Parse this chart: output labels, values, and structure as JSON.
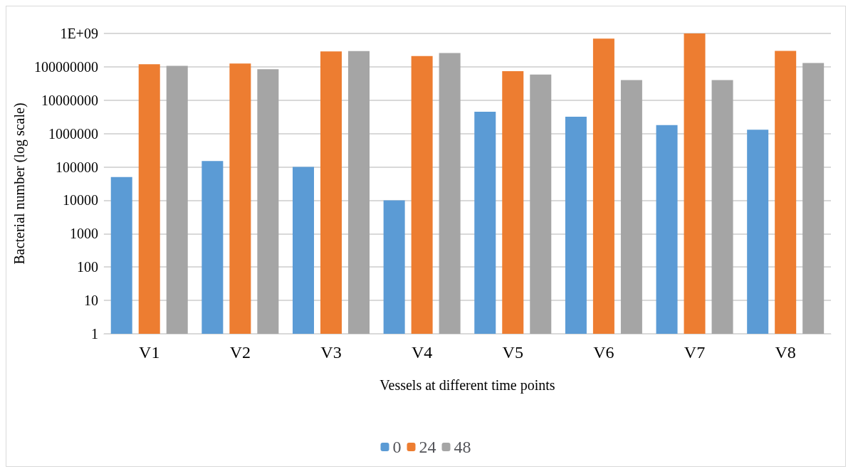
{
  "chart_data": {
    "type": "bar",
    "xlabel": "Vessels at different time points",
    "ylabel": "Bacterial number (log scale)",
    "categories": [
      "V1",
      "V2",
      "V3",
      "V4",
      "V5",
      "V6",
      "V7",
      "V8"
    ],
    "series": [
      {
        "name": "0",
        "color": "#5b9bd5",
        "values": [
          50000,
          150000,
          100000,
          10000,
          4500000,
          3200000,
          1800000,
          1300000
        ]
      },
      {
        "name": "24",
        "color": "#ed7d31",
        "values": [
          120000000,
          126000000,
          290000000,
          210000000,
          74000000,
          700000000,
          1000000000,
          300000000
        ]
      },
      {
        "name": "48",
        "color": "#a5a5a5",
        "values": [
          107000000,
          85000000,
          295000000,
          260000000,
          59000000,
          40000000,
          40000000,
          130000000
        ]
      }
    ],
    "log": "y",
    "ylim": [
      1,
      1000000000
    ],
    "yticks": [
      1,
      10,
      100,
      1000,
      10000,
      100000,
      1000000,
      10000000,
      100000000,
      {
        "value": 1000000000,
        "label": "1E+09"
      }
    ],
    "grid": "y",
    "legend": "bottom"
  }
}
